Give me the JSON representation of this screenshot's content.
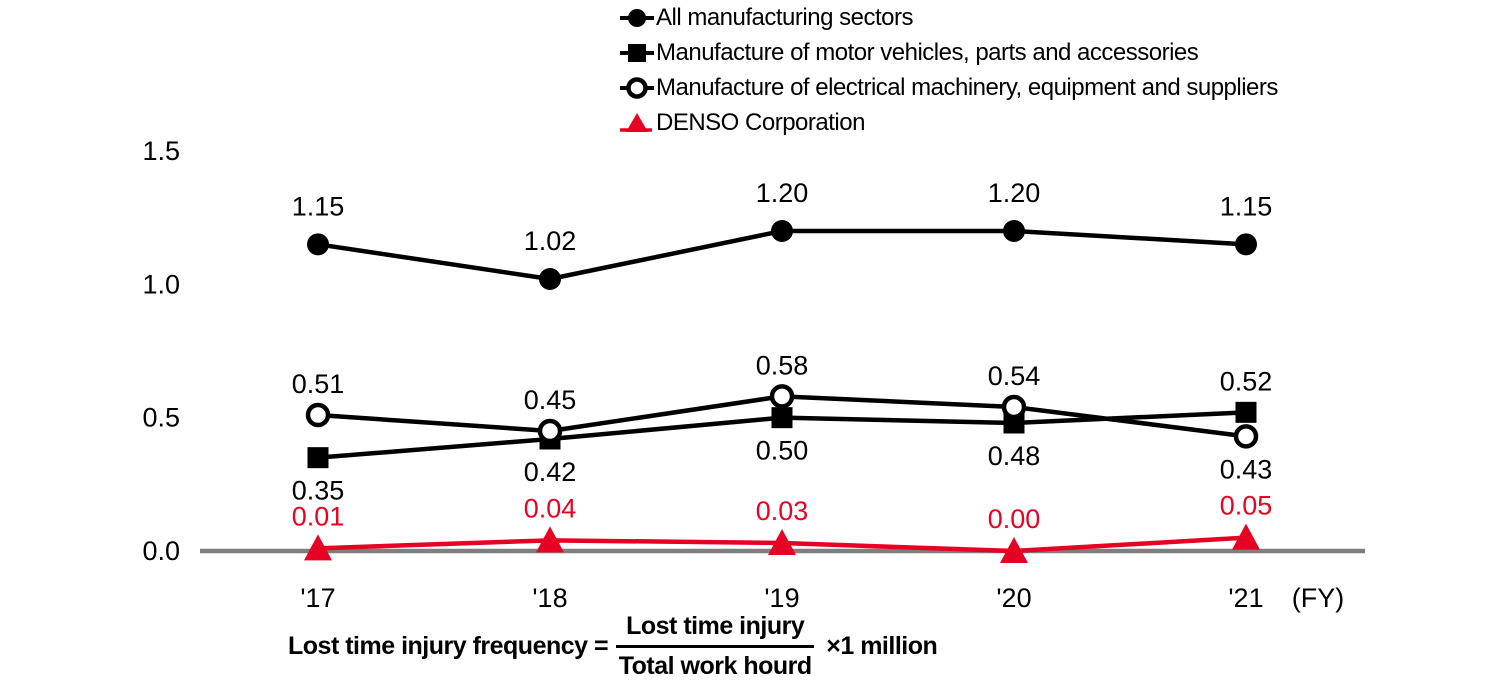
{
  "page": {
    "background": "#ffffff"
  },
  "chart_data": {
    "type": "line",
    "title": "",
    "x_categories": [
      "'17",
      "'18",
      "'19",
      "'20",
      "'21"
    ],
    "x_axis_unit": "(FY)",
    "y_ticks": [
      1.5,
      1.0,
      0.5,
      0.0
    ],
    "ylim": [
      0,
      1.5
    ],
    "grid": "off",
    "legend_position": "top",
    "value_decimals": 2,
    "colors": {
      "black": "#000000",
      "denso_red": "#e60023",
      "axis_gray": "#7f7f7f"
    },
    "series": [
      {
        "key": "all-manufacturing-sectors",
        "label": "All manufacturing sectors",
        "marker": "filled-circle",
        "color": "#000000",
        "values": [
          1.15,
          1.02,
          1.2,
          1.2,
          1.15
        ],
        "label_sides": [
          "above",
          "above",
          "above",
          "above",
          "above"
        ]
      },
      {
        "key": "motor-vehicles",
        "label": "Manufacture of motor vehicles, parts and accessories",
        "marker": "filled-square",
        "color": "#000000",
        "values": [
          0.35,
          0.42,
          0.5,
          0.48,
          0.52
        ],
        "label_sides": [
          "below",
          "below",
          "below",
          "below",
          "above"
        ]
      },
      {
        "key": "electrical-machinery",
        "label": "Manufacture of electrical machinery, equipment and suppliers",
        "marker": "open-circle",
        "color": "#000000",
        "values": [
          0.51,
          0.45,
          0.58,
          0.54,
          0.43
        ],
        "label_sides": [
          "above",
          "above",
          "above",
          "above",
          "below"
        ]
      },
      {
        "key": "denso",
        "label": "DENSO Corporation",
        "marker": "filled-triangle",
        "color": "#e60023",
        "values": [
          0.01,
          0.04,
          0.03,
          0.0,
          0.05
        ],
        "label_sides": [
          "above",
          "above",
          "above",
          "above",
          "above"
        ]
      }
    ],
    "formula": {
      "lhs": "Lost time injury frequency =",
      "numerator": "Lost time injury",
      "denominator": "Total work hourd",
      "multiplier": "×1 million"
    }
  }
}
